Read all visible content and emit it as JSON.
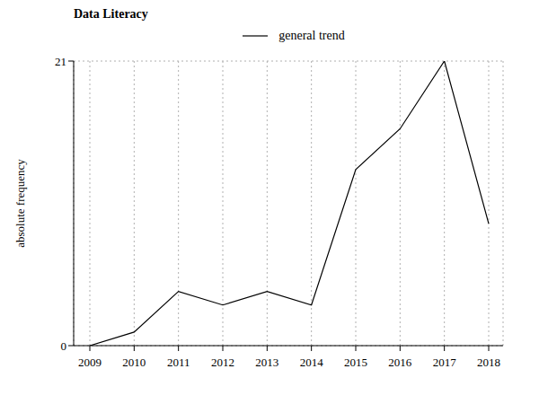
{
  "chart_data": {
    "type": "line",
    "title": "Data Literacy",
    "y_label": "absolute frequency",
    "categories": [
      "2009",
      "2010",
      "2011",
      "2012",
      "2013",
      "2014",
      "2015",
      "2016",
      "2017",
      "2018"
    ],
    "series": [
      {
        "name": "general trend",
        "color": "#000000",
        "values": [
          0,
          1,
          4,
          3,
          4,
          3,
          13,
          16,
          21,
          9
        ]
      }
    ],
    "ylim": [
      0,
      21
    ],
    "yticks": [
      0,
      21
    ],
    "grid": true,
    "legend": "top"
  }
}
